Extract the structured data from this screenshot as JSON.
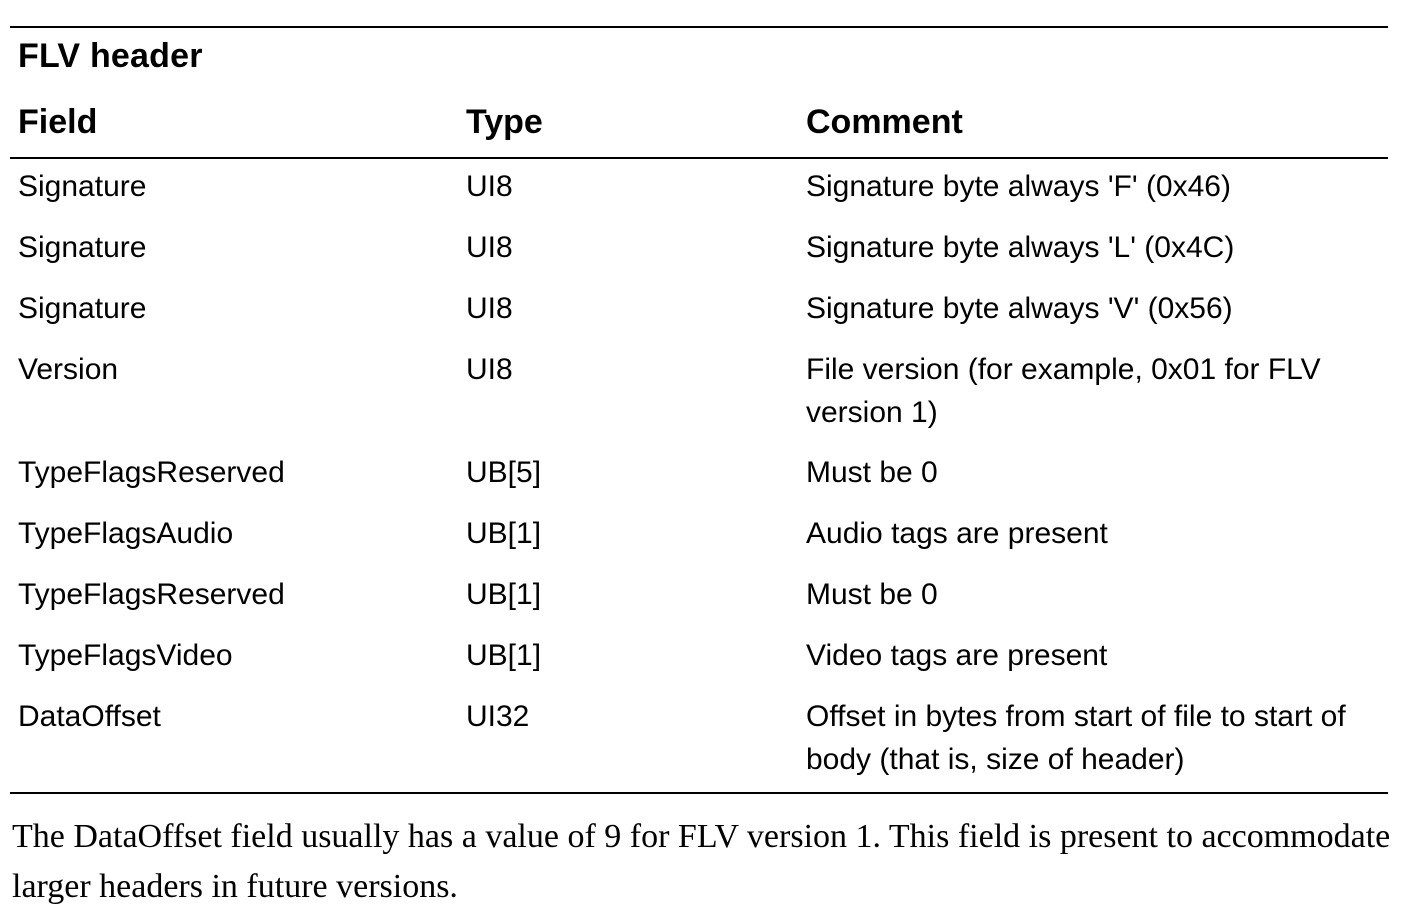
{
  "table": {
    "caption": "FLV header",
    "headers": {
      "field": "Field",
      "type": "Type",
      "comment": "Comment"
    },
    "rows": [
      {
        "field": "Signature",
        "type": "UI8",
        "comment": "Signature byte always 'F' (0x46)"
      },
      {
        "field": "Signature",
        "type": "UI8",
        "comment": "Signature byte always 'L' (0x4C)"
      },
      {
        "field": "Signature",
        "type": "UI8",
        "comment": "Signature byte always 'V' (0x56)"
      },
      {
        "field": "Version",
        "type": "UI8",
        "comment": "File version (for example, 0x01 for FLV version 1)"
      },
      {
        "field": "TypeFlagsReserved",
        "type": "UB[5]",
        "comment": "Must be 0"
      },
      {
        "field": "TypeFlagsAudio",
        "type": "UB[1]",
        "comment": "Audio tags are present"
      },
      {
        "field": "TypeFlagsReserved",
        "type": "UB[1]",
        "comment": "Must be 0"
      },
      {
        "field": "TypeFlagsVideo",
        "type": "UB[1]",
        "comment": "Video tags are present"
      },
      {
        "field": "DataOffset",
        "type": "UI32",
        "comment": "Offset in bytes from start of file to start of body (that is, size of header)"
      }
    ]
  },
  "note": "The DataOffset field usually has a value of 9 for FLV version 1. This field is present to accommodate larger headers in future versions."
}
